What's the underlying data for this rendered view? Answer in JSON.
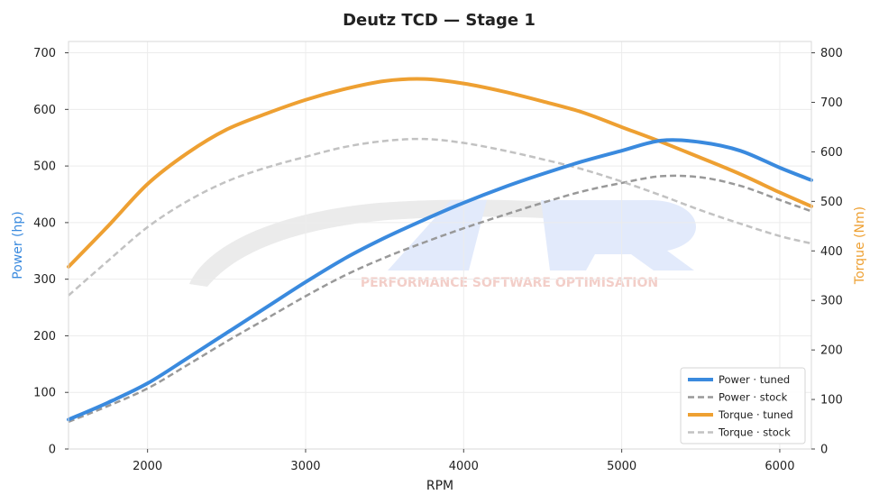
{
  "chart_data": {
    "type": "line",
    "title": "Deutz TCD — Stage 1",
    "xlabel": "RPM",
    "ylabel_left": "Power (hp)",
    "ylabel_right": "Torque (Nm)",
    "xlim": [
      1500,
      6200
    ],
    "ylim_left": [
      0,
      720
    ],
    "ylim_right": [
      0,
      822.857
    ],
    "xticks": [
      "2000",
      "3000",
      "4000",
      "5000",
      "6000"
    ],
    "yticks_left": [
      "0",
      "100",
      "200",
      "300",
      "400",
      "500",
      "600",
      "700"
    ],
    "yticks_right": [
      "0",
      "100",
      "200",
      "300",
      "400",
      "500",
      "600",
      "700",
      "800"
    ],
    "grid": true,
    "legend_position": "bottom-right",
    "watermark": "PERFORMANCE SOFTWARE OPTIMISATION",
    "colors": {
      "power": "#3a8ade",
      "torque": "#eea032",
      "power_stock": "#999999",
      "torque_stock": "#c2c2c2"
    },
    "series": [
      {
        "name": "Power · tuned",
        "axis": "left",
        "style": "solid",
        "color": "#3a8ade",
        "x": [
          1500,
          1750,
          2000,
          2250,
          2500,
          2750,
          3000,
          3250,
          3500,
          3750,
          4000,
          4250,
          4500,
          4750,
          5000,
          5250,
          5500,
          5750,
          6000,
          6200
        ],
        "y": [
          52,
          82,
          116,
          160,
          205,
          250,
          295,
          337,
          373,
          405,
          435,
          462,
          486,
          508,
          527,
          545,
          542,
          527,
          497,
          475
        ]
      },
      {
        "name": "Power · stock",
        "axis": "left",
        "style": "dashed",
        "color": "#999999",
        "x": [
          1500,
          1750,
          2000,
          2250,
          2500,
          2750,
          3000,
          3250,
          3500,
          3750,
          4000,
          4250,
          4500,
          4750,
          5000,
          5250,
          5500,
          5750,
          6000,
          6200
        ],
        "y": [
          48,
          76,
          107,
          148,
          190,
          230,
          270,
          307,
          338,
          365,
          390,
          413,
          435,
          455,
          470,
          482,
          480,
          465,
          440,
          420
        ]
      },
      {
        "name": "Torque · tuned",
        "axis": "right",
        "style": "solid",
        "color": "#eea032",
        "x": [
          1500,
          1750,
          2000,
          2250,
          2500,
          2750,
          3000,
          3250,
          3500,
          3750,
          4000,
          4250,
          4500,
          4750,
          5000,
          5250,
          5500,
          5750,
          6000,
          6200
        ],
        "y": [
          368,
          450,
          535,
          597,
          645,
          677,
          705,
          727,
          743,
          747,
          738,
          722,
          702,
          680,
          650,
          620,
          588,
          555,
          518,
          490
        ]
      },
      {
        "name": "Torque · stock",
        "axis": "right",
        "style": "dashed",
        "color": "#c2c2c2",
        "x": [
          1500,
          1750,
          2000,
          2250,
          2500,
          2750,
          3000,
          3250,
          3500,
          3750,
          4000,
          4250,
          4500,
          4750,
          5000,
          5250,
          5500,
          5750,
          6000,
          6200
        ],
        "y": [
          310,
          380,
          448,
          500,
          540,
          568,
          590,
          610,
          622,
          626,
          618,
          603,
          585,
          565,
          540,
          512,
          482,
          455,
          430,
          415
        ]
      }
    ]
  }
}
